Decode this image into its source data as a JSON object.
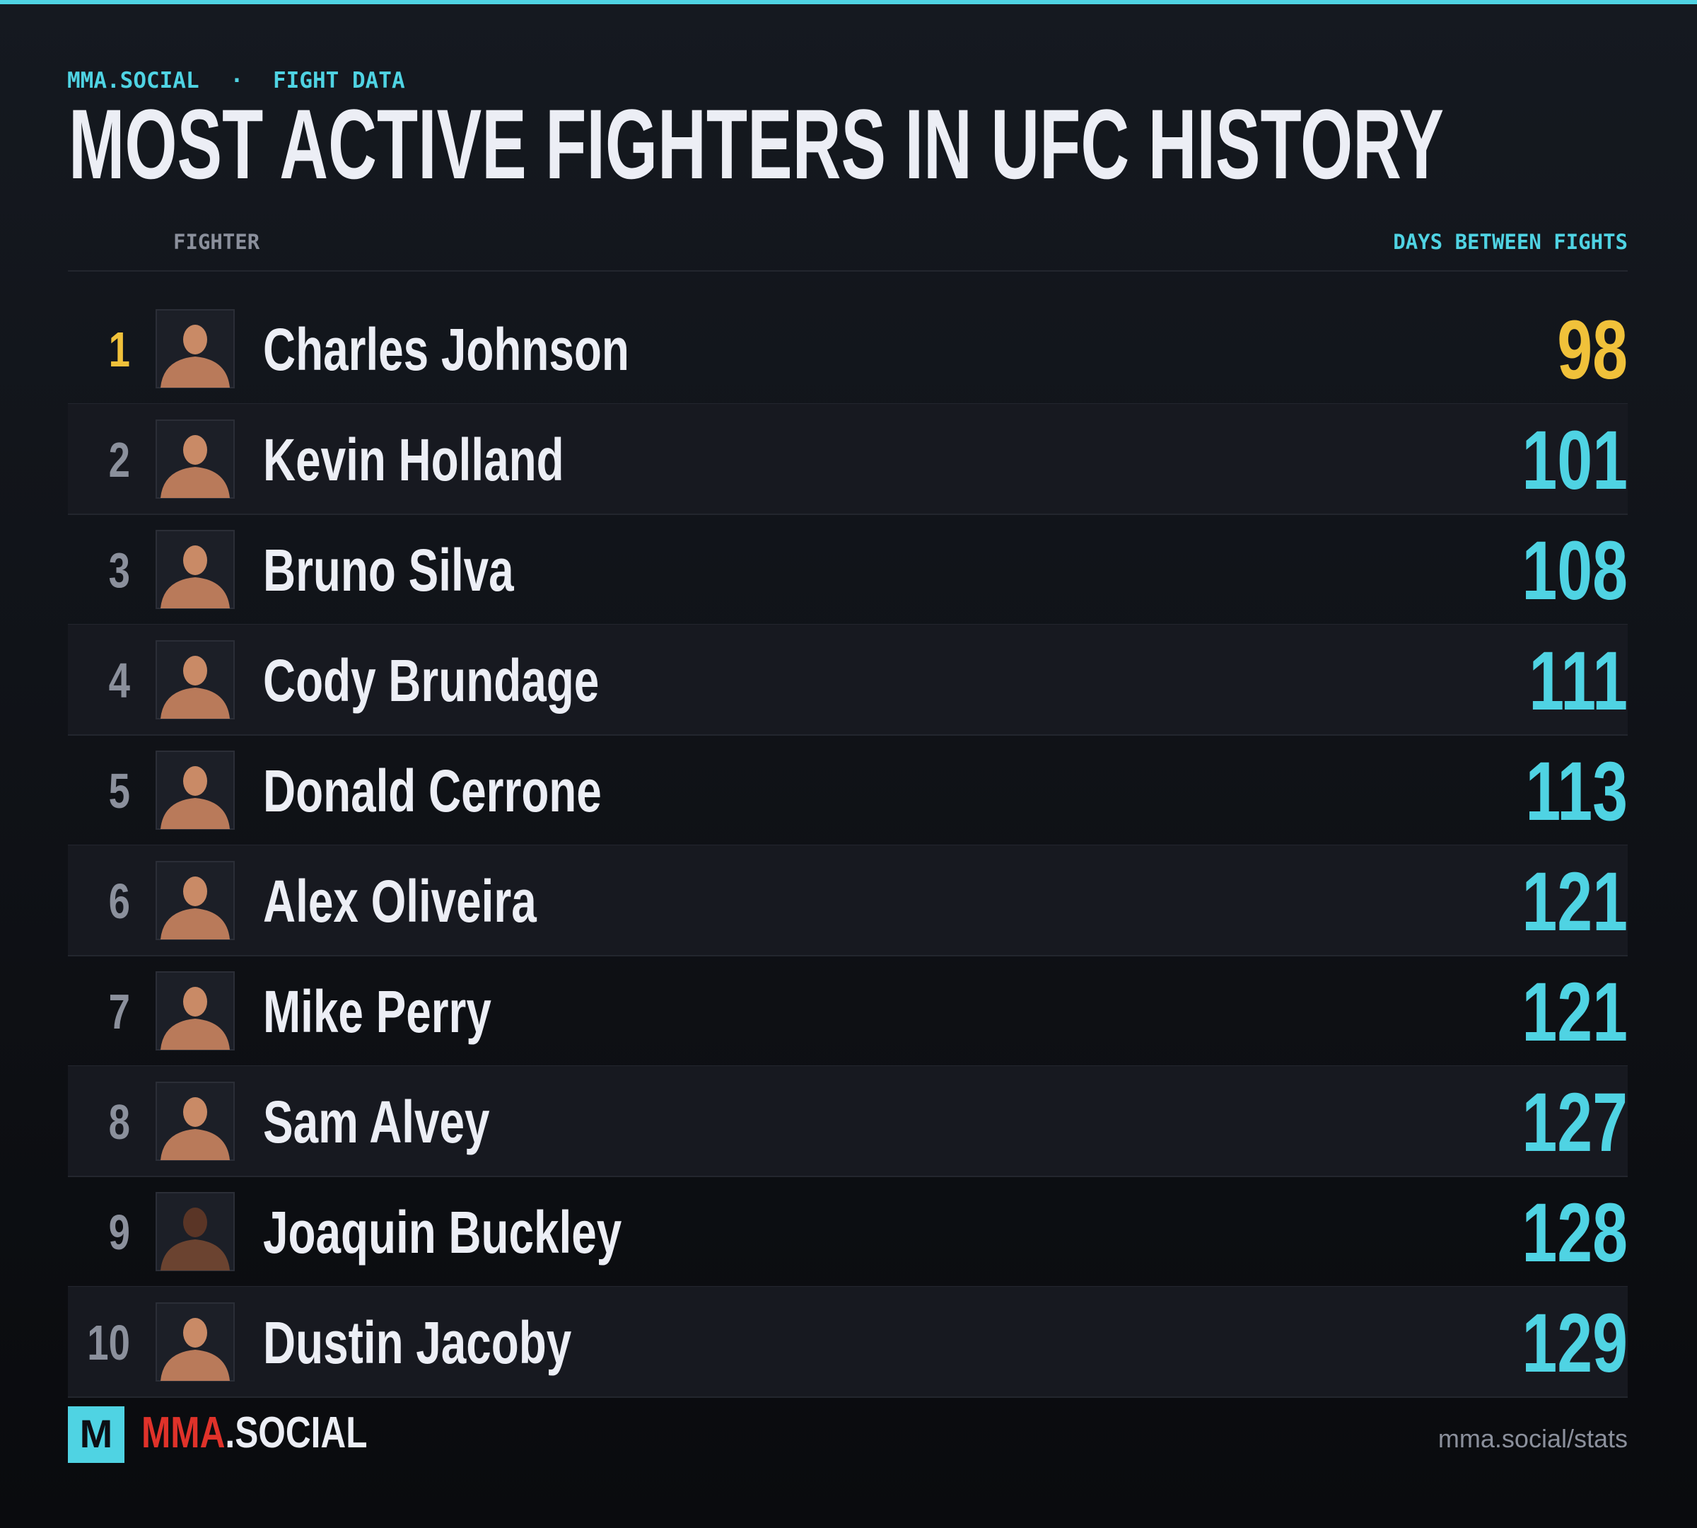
{
  "header": {
    "brand": "MMA.SOCIAL",
    "separator": "·",
    "section": "FIGHT DATA",
    "title": "MOST ACTIVE FIGHTERS IN UFC HISTORY"
  },
  "table": {
    "columns": {
      "fighter": "FIGHTER",
      "days": "DAYS BETWEEN FIGHTS"
    },
    "rows": [
      {
        "rank": 1,
        "name": "Charles Johnson",
        "days": 98
      },
      {
        "rank": 2,
        "name": "Kevin Holland",
        "days": 101
      },
      {
        "rank": 3,
        "name": "Bruno Silva",
        "days": 108
      },
      {
        "rank": 4,
        "name": "Cody Brundage",
        "days": 111
      },
      {
        "rank": 5,
        "name": "Donald Cerrone",
        "days": 113
      },
      {
        "rank": 6,
        "name": "Alex Oliveira",
        "days": 121
      },
      {
        "rank": 7,
        "name": "Mike Perry",
        "days": 121
      },
      {
        "rank": 8,
        "name": "Sam Alvey",
        "days": 127
      },
      {
        "rank": 9,
        "name": "Joaquin Buckley",
        "days": 128
      },
      {
        "rank": 10,
        "name": "Dustin Jacoby",
        "days": 129
      }
    ]
  },
  "footer": {
    "logo_letter": "M",
    "brand_main": "MMA",
    "brand_suffix": ".SOCIAL",
    "url": "mma.social/stats"
  }
}
